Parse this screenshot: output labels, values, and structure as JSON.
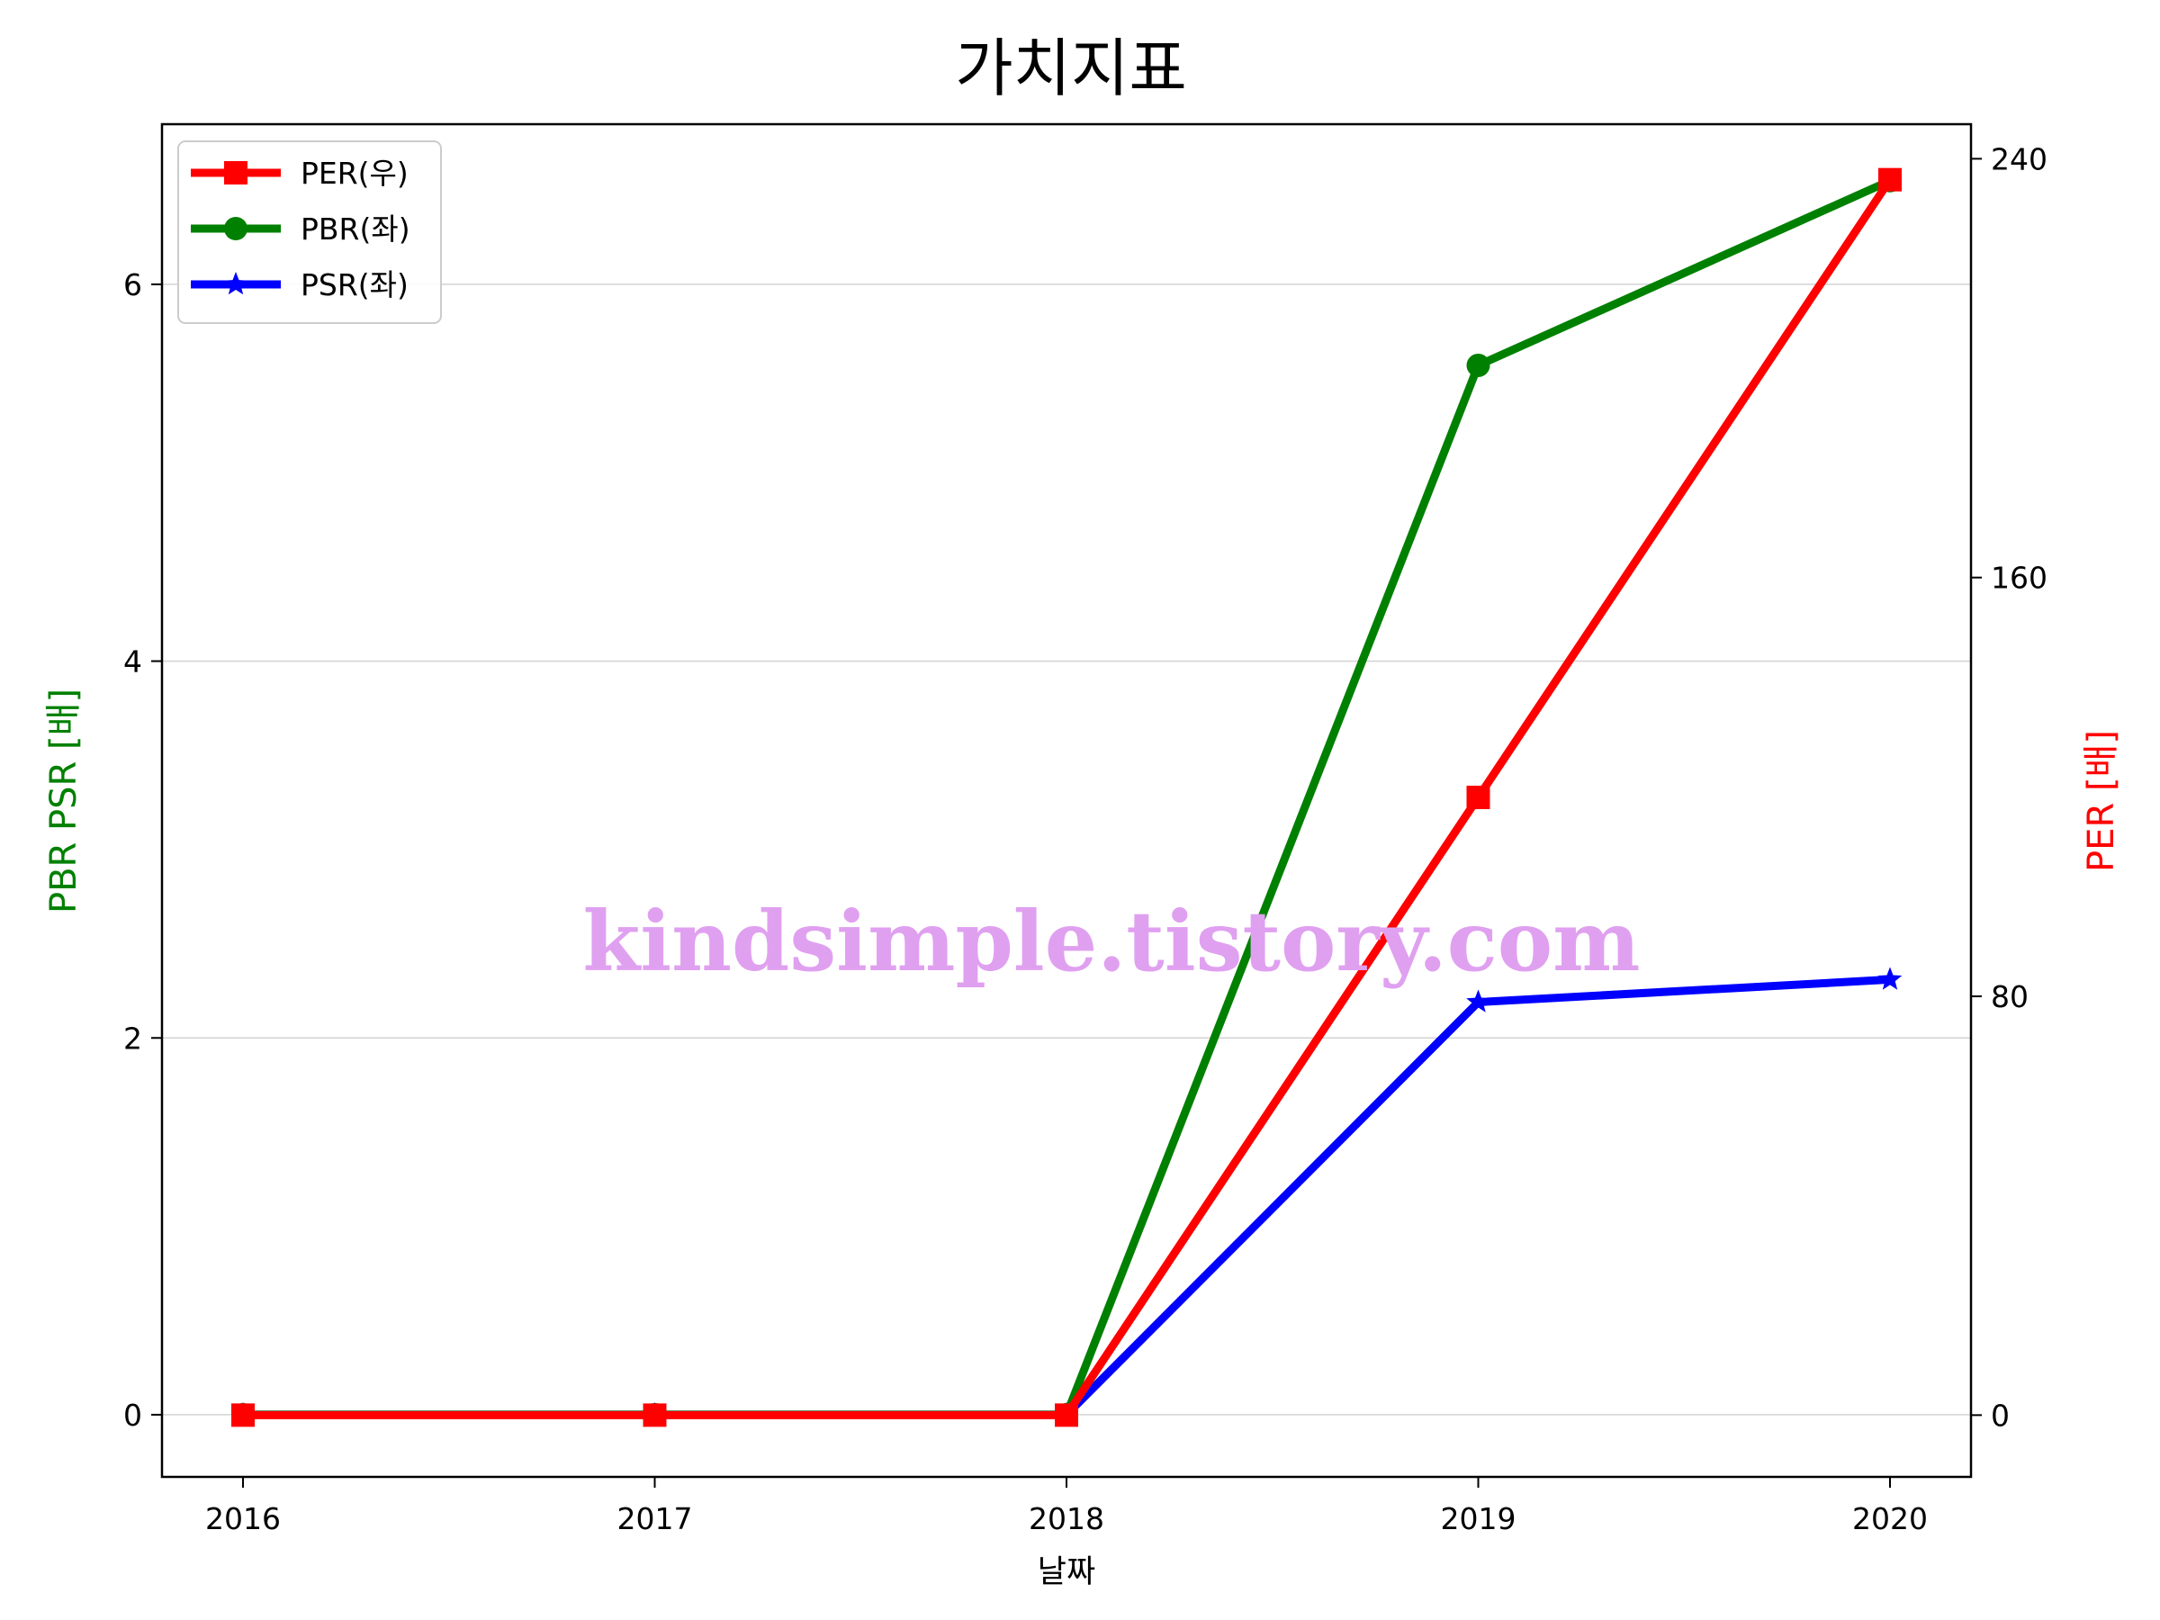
{
  "chart_data": {
    "type": "line",
    "title": "가치지표",
    "xlabel": "날짜",
    "ylabel_left": "PBR PSR [배]",
    "ylabel_right": "PER [배]",
    "x": [
      "2016",
      "2017",
      "2018",
      "2019",
      "2020"
    ],
    "ylim_left": [
      -0.33,
      6.85
    ],
    "ylim_right": [
      -11.8,
      246.6
    ],
    "yticks_left": [
      "0",
      "2",
      "4",
      "6"
    ],
    "yticks_right": [
      "0",
      "80",
      "160",
      "240"
    ],
    "grid": "horizontal",
    "legend_position": "top-left",
    "series": [
      {
        "name": "PER(우)",
        "axis": "right",
        "color": "#ff0000",
        "marker": "square",
        "values": [
          0,
          0,
          0,
          118,
          236
        ]
      },
      {
        "name": "PBR(좌)",
        "axis": "left",
        "color": "#008000",
        "marker": "circle",
        "values": [
          0,
          0,
          0,
          5.57,
          6.55
        ]
      },
      {
        "name": "PSR(좌)",
        "axis": "left",
        "color": "#0000ff",
        "marker": "star",
        "values": [
          0,
          0,
          0,
          2.19,
          2.31
        ]
      }
    ],
    "watermark": "kindsimple.tistory.com",
    "watermark_color": "#e0a0f0"
  }
}
